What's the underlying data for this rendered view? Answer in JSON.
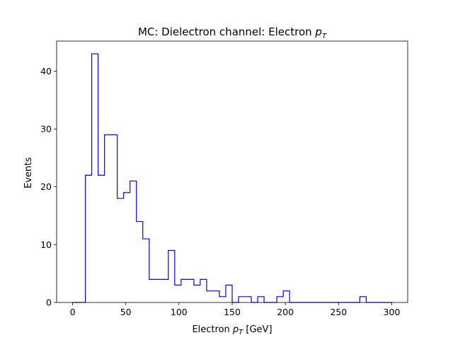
{
  "chart_data": {
    "type": "histogram",
    "title": "MC: Dielectron channel: Electron p_T",
    "title_parts": {
      "prefix": "MC: Dielectron channel: Electron ",
      "var": "p",
      "sub": "T"
    },
    "xlabel": "Electron p_T [GeV]",
    "xlabel_parts": {
      "prefix": "Electron ",
      "var": "p",
      "sub": "T",
      "suffix": " [GeV]"
    },
    "ylabel": "Events",
    "xlim": [
      -15,
      315
    ],
    "ylim": [
      0,
      45.2
    ],
    "xticks": [
      0,
      50,
      100,
      150,
      200,
      250,
      300
    ],
    "yticks": [
      0,
      10,
      20,
      30,
      40
    ],
    "grid": false,
    "histtype": "step",
    "color": "#0000ff",
    "bin_edges": [
      0,
      6,
      12,
      18,
      24,
      30,
      36,
      42,
      48,
      54,
      60,
      66,
      72,
      78,
      84,
      90,
      96,
      102,
      108,
      114,
      120,
      126,
      132,
      138,
      144,
      150,
      156,
      162,
      168,
      174,
      180,
      186,
      192,
      198,
      204,
      210,
      216,
      222,
      228,
      234,
      240,
      246,
      252,
      258,
      264,
      270,
      276,
      282,
      288,
      294,
      300
    ],
    "counts": [
      0,
      0,
      22,
      43,
      22,
      29,
      29,
      18,
      19,
      21,
      14,
      11,
      4,
      4,
      4,
      9,
      3,
      4,
      4,
      3,
      4,
      2,
      2,
      1,
      3,
      0,
      1,
      1,
      0,
      1,
      0,
      0,
      1,
      2,
      0,
      0,
      0,
      0,
      0,
      0,
      0,
      0,
      0,
      0,
      0,
      1,
      0,
      0,
      0,
      0
    ]
  }
}
